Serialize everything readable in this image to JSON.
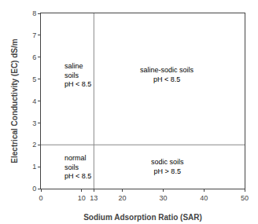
{
  "chart_data": {
    "type": "threshold_regions",
    "xlabel": "Sodium Adsorption Ratio (SAR)",
    "ylabel": "Electrical Conductivity (EC) dS/m",
    "xlim": [
      0,
      50
    ],
    "ylim": [
      0,
      8
    ],
    "xticks": [
      0,
      10,
      13,
      20,
      30,
      40,
      50
    ],
    "yticks": [
      0,
      1,
      2,
      3,
      4,
      5,
      6,
      7,
      8
    ],
    "threshold_x": 13,
    "threshold_y": 2,
    "color": "#888888",
    "grid": false,
    "annotations": [
      {
        "text": "saline\nsoils\npH < 8.5",
        "x": 5.5,
        "y": 5.2
      },
      {
        "text": "saline-sodic soils\npH < 8.5",
        "x": 31,
        "y": 5.2
      },
      {
        "text": "normal\nsoils\npH < 8.5",
        "x": 5.5,
        "y": 1.0
      },
      {
        "text": "sodic soils\npH > 8.5",
        "x": 31,
        "y": 1.0
      }
    ]
  }
}
